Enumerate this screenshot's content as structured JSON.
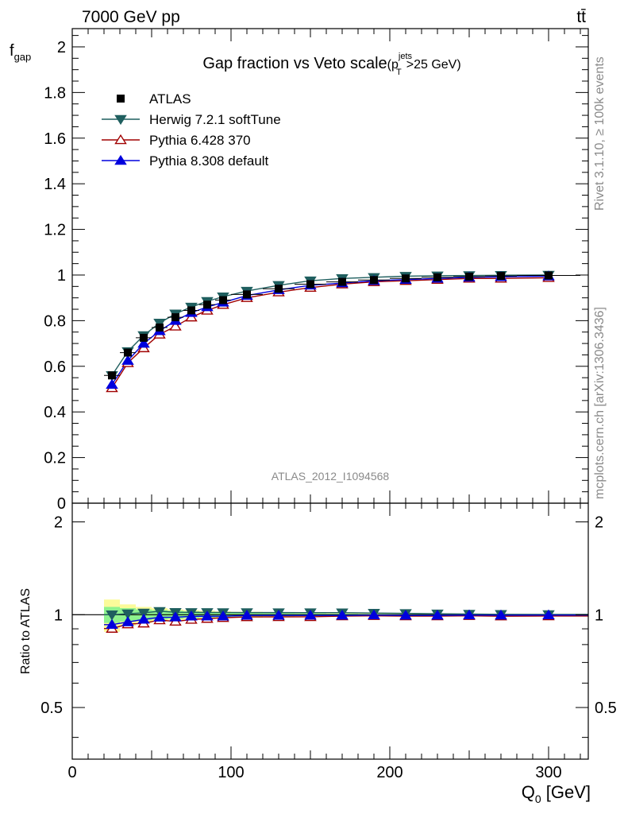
{
  "header": {
    "left": "7000 GeV pp",
    "right": "tt̄"
  },
  "side_labels": {
    "rivet": "Rivet 3.1.10, ≥ 100k events",
    "mcplots": "mcplots.cern.ch [arXiv:1306.3436]"
  },
  "chart_data": {
    "type": "line",
    "title_main": "Gap fraction vs Veto scale",
    "title_paren_open": "(p",
    "title_sup": "jets",
    "title_sub": "T",
    "title_tail": ">25 GeV)",
    "analysis_label": "ATLAS_2012_I1094568",
    "xlabel_main": "Q",
    "xlabel_sub": "0",
    "xlabel_unit": " [GeV]",
    "ylabel_main": "f",
    "ylabel_sub": "gap",
    "ratio_ylabel": "Ratio to ATLAS",
    "xlim": [
      0,
      325
    ],
    "ylim": [
      0,
      2.08
    ],
    "ratio_ylim": [
      0.34,
      2.3
    ],
    "x_ticks": [
      0,
      100,
      200,
      300
    ],
    "x_tick_labels": [
      "0",
      "100",
      "200",
      "300"
    ],
    "y_ticks": [
      0,
      0.2,
      0.4,
      0.6,
      0.8,
      1,
      1.2,
      1.4,
      1.6,
      1.8,
      2
    ],
    "y_tick_labels": [
      "0",
      "0.2",
      "0.4",
      "0.6",
      "0.8",
      "1",
      "1.2",
      "1.4",
      "1.6",
      "1.8",
      "2"
    ],
    "ratio_ticks": [
      0.5,
      1,
      2
    ],
    "ratio_tick_labels": [
      "0.5",
      "1",
      "2"
    ],
    "x": [
      25,
      35,
      45,
      55,
      65,
      75,
      85,
      95,
      110,
      130,
      150,
      170,
      190,
      210,
      230,
      250,
      270,
      300
    ],
    "bin_edges": [
      20,
      30,
      40,
      50,
      60,
      70,
      80,
      90,
      100,
      120,
      140,
      160,
      180,
      200,
      220,
      240,
      260,
      280,
      320
    ],
    "data": {
      "name": "ATLAS",
      "values": [
        0.56,
        0.66,
        0.725,
        0.77,
        0.815,
        0.845,
        0.87,
        0.89,
        0.915,
        0.94,
        0.96,
        0.97,
        0.978,
        0.985,
        0.99,
        0.993,
        0.996,
        0.998
      ],
      "band_outer": [
        0.12,
        0.08,
        0.06,
        0.05,
        0.04,
        0.035,
        0.03,
        0.025,
        0.022,
        0.018,
        0.014,
        0.012,
        0.01,
        0.008,
        0.006,
        0.005,
        0.004,
        0.003
      ],
      "band_inner": [
        0.06,
        0.05,
        0.04,
        0.035,
        0.03,
        0.025,
        0.02,
        0.018,
        0.015,
        0.012,
        0.01,
        0.008,
        0.006,
        0.005,
        0.004,
        0.003,
        0.003,
        0.002
      ]
    },
    "series": [
      {
        "name": "Herwig 7.2.1 softTune",
        "color": "#1f5f5f",
        "marker": "triangle-down-filled",
        "values": [
          0.56,
          0.665,
          0.735,
          0.79,
          0.83,
          0.86,
          0.885,
          0.905,
          0.93,
          0.955,
          0.975,
          0.985,
          0.99,
          0.995,
          0.997,
          0.998,
          0.999,
          1.0
        ]
      },
      {
        "name": "Pythia 6.428 370",
        "color": "#a00000",
        "marker": "triangle-up-open",
        "values": [
          0.505,
          0.615,
          0.68,
          0.74,
          0.775,
          0.815,
          0.845,
          0.87,
          0.9,
          0.925,
          0.945,
          0.96,
          0.97,
          0.975,
          0.98,
          0.985,
          0.985,
          0.988
        ]
      },
      {
        "name": "Pythia 8.308 default",
        "color": "#0000dd",
        "marker": "triangle-up-filled",
        "values": [
          0.52,
          0.625,
          0.7,
          0.755,
          0.8,
          0.835,
          0.86,
          0.88,
          0.91,
          0.935,
          0.955,
          0.965,
          0.975,
          0.98,
          0.985,
          0.99,
          0.992,
          0.995
        ]
      }
    ],
    "legend_placement": "top-left"
  }
}
